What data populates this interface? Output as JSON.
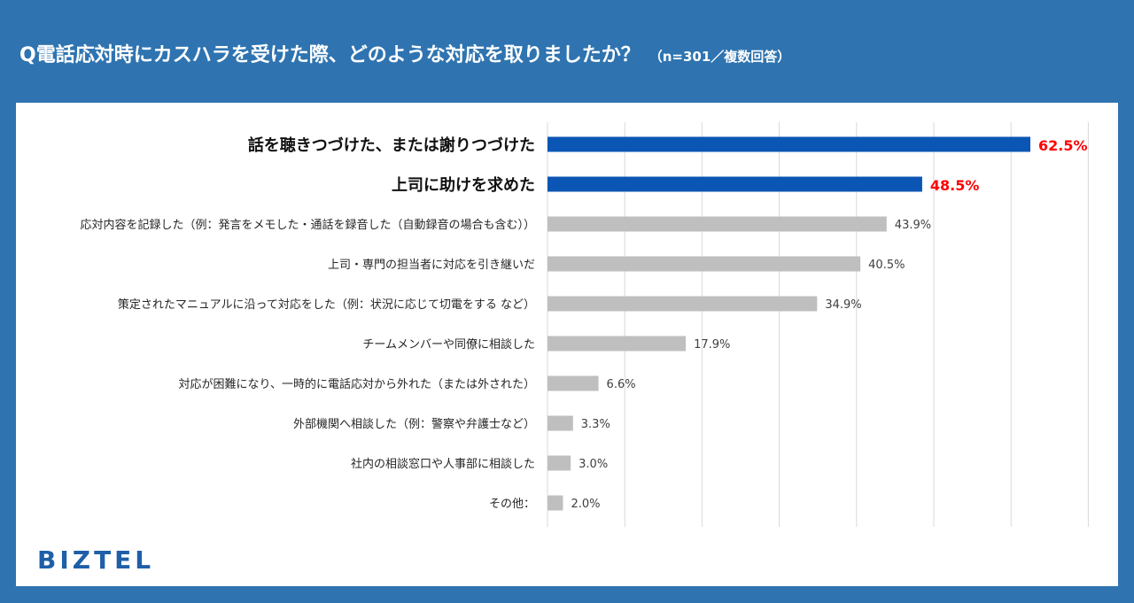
{
  "header": {
    "title": "Q電話応対時にカスハラを受けた際、どのような対応を取りましたか？",
    "subtitle": "（n=301／複数回答）"
  },
  "brand": {
    "logo_text": "BIZTEL"
  },
  "colors": {
    "background": "#2f74b0",
    "highlight_bar": "#0b56b4",
    "normal_bar": "#bfbfbf",
    "highlight_value": "#ff0000",
    "normal_value": "#404040"
  },
  "chart_data": {
    "type": "bar",
    "orientation": "horizontal",
    "title": "Q電話応対時にカスハラを受けた際、どのような対応を取りましたか？",
    "subtitle": "（n=301／複数回答）",
    "unit": "%",
    "xlim": [
      0,
      70
    ],
    "grid": true,
    "categories": [
      "話を聴きつづけた、または謝りつづけた",
      "上司に助けを求めた",
      "応対内容を記録した（例：発言をメモした・通話を録音した（自動録音の場合も含む））",
      "上司・専門の担当者に対応を引き継いだ",
      "策定されたマニュアルに沿って対応をした（例：状況に応じて切電をする など）",
      "チームメンバーや同僚に相談した",
      "対応が困難になり、一時的に電話応対から外れた（または外された）",
      "外部機関へ相談した（例：警察や弁護士など）",
      "社内の相談窓口や人事部に相談した",
      "その他："
    ],
    "values": [
      62.5,
      48.5,
      43.9,
      40.5,
      34.9,
      17.9,
      6.6,
      3.3,
      3.0,
      2.0
    ],
    "value_labels": [
      "62.5%",
      "48.5%",
      "43.9%",
      "40.5%",
      "34.9%",
      "17.9%",
      "6.6%",
      "3.3%",
      "3.0%",
      "2.0%"
    ],
    "highlighted": [
      true,
      true,
      false,
      false,
      false,
      false,
      false,
      false,
      false,
      false
    ]
  }
}
